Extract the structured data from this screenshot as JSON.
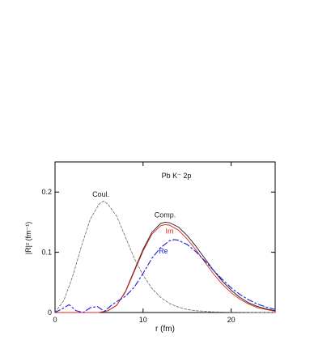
{
  "chart_data": {
    "type": "line",
    "title": "Pb K⁻ 2p",
    "xlabel": "r (fm)",
    "ylabel": "|R|² (fm⁻¹)",
    "xlim": [
      0,
      25
    ],
    "ylim": [
      0,
      0.25
    ],
    "xticks": [
      0,
      10,
      20
    ],
    "xtick_labels": [
      "0",
      "10",
      "20"
    ],
    "yticks": [
      0,
      0.1,
      0.2
    ],
    "ytick_labels": [
      "0",
      "0.1",
      "0.2"
    ],
    "grid": false,
    "legend": "none",
    "series": [
      {
        "name": "Coul.",
        "color": "#777777",
        "style": "dashed",
        "x": [
          0,
          1,
          2,
          3,
          4,
          5,
          5.5,
          6,
          7,
          8,
          9,
          10,
          11,
          12,
          13,
          14,
          15,
          16,
          18,
          20,
          22,
          25
        ],
        "y": [
          0,
          0.02,
          0.06,
          0.11,
          0.155,
          0.18,
          0.185,
          0.18,
          0.16,
          0.125,
          0.09,
          0.062,
          0.04,
          0.025,
          0.015,
          0.009,
          0.005,
          0.003,
          0.001,
          0.0005,
          0.0002,
          0
        ]
      },
      {
        "name": "Comp.",
        "color": "#1a1a1a",
        "style": "solid",
        "x": [
          0,
          5,
          6,
          7,
          8,
          9,
          10,
          11,
          12,
          12.5,
          13,
          14,
          15,
          16,
          17,
          18,
          19,
          20,
          21,
          22,
          23,
          24,
          25
        ],
        "y": [
          0,
          0,
          0.003,
          0.012,
          0.035,
          0.07,
          0.105,
          0.133,
          0.148,
          0.15,
          0.149,
          0.142,
          0.128,
          0.11,
          0.09,
          0.07,
          0.052,
          0.037,
          0.025,
          0.016,
          0.01,
          0.006,
          0.003
        ]
      },
      {
        "name": "Im",
        "color": "#e0201c",
        "style": "solid",
        "x": [
          0,
          5,
          6,
          7,
          8,
          9,
          10,
          11,
          12,
          12.5,
          13,
          14,
          15,
          16,
          17,
          18,
          19,
          20,
          21,
          22,
          23,
          24,
          25
        ],
        "y": [
          0,
          0,
          0.003,
          0.012,
          0.034,
          0.068,
          0.102,
          0.13,
          0.144,
          0.146,
          0.145,
          0.137,
          0.122,
          0.104,
          0.084,
          0.064,
          0.047,
          0.033,
          0.022,
          0.014,
          0.008,
          0.005,
          0.002
        ]
      },
      {
        "name": "Re",
        "color": "#1a1ad8",
        "style": "dashdot",
        "x": [
          0,
          0.8,
          1.6,
          2.4,
          3.2,
          4,
          4.8,
          5.6,
          6.4,
          7,
          8,
          9,
          10,
          11,
          12,
          13,
          13.5,
          14,
          15,
          16,
          17,
          18,
          19,
          20,
          21,
          22,
          23,
          24,
          25
        ],
        "y": [
          0,
          0.006,
          0.013,
          0.003,
          0,
          0.008,
          0.01,
          0.002,
          0.012,
          0.018,
          0.027,
          0.042,
          0.065,
          0.09,
          0.108,
          0.119,
          0.121,
          0.12,
          0.113,
          0.101,
          0.086,
          0.07,
          0.055,
          0.041,
          0.03,
          0.021,
          0.014,
          0.009,
          0.005
        ]
      }
    ],
    "annotations": [
      {
        "text": "Coul.",
        "x": 5.2,
        "y": 0.192,
        "color": "#1a1a1a"
      },
      {
        "text": "Comp.",
        "x": 12.5,
        "y": 0.158,
        "color": "#1a1a1a"
      },
      {
        "text": "Im",
        "x": 13.0,
        "y": 0.131,
        "color": "#e0201c"
      },
      {
        "text": "Re",
        "x": 12.3,
        "y": 0.098,
        "color": "#1a1ad8"
      }
    ]
  }
}
